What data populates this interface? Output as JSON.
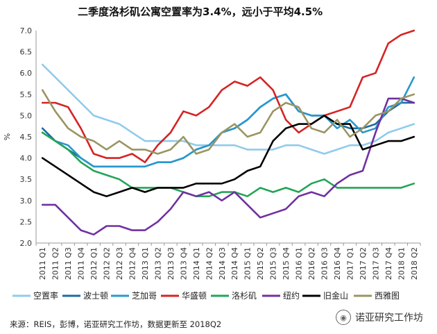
{
  "title": "二季度洛杉矶公寓空置率为3.4%，远小于平均4.5%",
  "source": "来源：REIS，彭博，诺亚研究工作坊，数据更新至 2018Q2",
  "watermark": "诺亚研究工作坊",
  "chart_data": {
    "type": "line",
    "ylabel": "%",
    "ylim": [
      2.0,
      7.0
    ],
    "yticks": [
      2.0,
      2.5,
      3.0,
      3.5,
      4.0,
      4.5,
      5.0,
      5.5,
      6.0,
      6.5,
      7.0
    ],
    "grid": false,
    "legend": "bottom",
    "categories": [
      "2011 Q1",
      "2011 Q2",
      "2011 Q3",
      "2011 Q4",
      "2012 Q1",
      "2012 Q2",
      "2012 Q3",
      "2012 Q4",
      "2013 Q1",
      "2013 Q2",
      "2013 Q3",
      "2013 Q4",
      "2014 Q1",
      "2014 Q2",
      "2014 Q3",
      "2014 Q4",
      "2015 Q1",
      "2015 Q2",
      "2015 Q3",
      "2015 Q4",
      "2016 Q1",
      "2016 Q2",
      "2016 Q3",
      "2016 Q4",
      "2017 Q1",
      "2017 Q2",
      "2017 Q3",
      "2017 Q4",
      "2018 Q1",
      "2018 Q2"
    ],
    "series": [
      {
        "name": "空置率",
        "color": "#8fcbec",
        "values": [
          6.2,
          5.9,
          5.6,
          5.3,
          5.0,
          4.9,
          4.8,
          4.6,
          4.4,
          4.4,
          4.4,
          4.4,
          4.3,
          4.3,
          4.3,
          4.3,
          4.2,
          4.2,
          4.2,
          4.3,
          4.3,
          4.2,
          4.1,
          4.2,
          4.3,
          4.3,
          4.4,
          4.6,
          4.7,
          4.8
        ]
      },
      {
        "name": "波士顿",
        "color": "#1c6ba0",
        "values": [
          4.7,
          4.4,
          4.2,
          4.0,
          3.8,
          3.8,
          3.8,
          3.8,
          3.8,
          3.9,
          3.9,
          4.0,
          4.2,
          4.3,
          4.6,
          4.7,
          4.9,
          5.2,
          5.4,
          5.5,
          5.1,
          5.0,
          5.0,
          4.8,
          4.7,
          4.7,
          4.8,
          5.1,
          5.3,
          5.3
        ]
      },
      {
        "name": "芝加哥",
        "color": "#2898cc",
        "values": [
          4.6,
          4.4,
          4.3,
          4.0,
          3.8,
          3.8,
          3.8,
          3.8,
          3.8,
          3.9,
          3.9,
          4.0,
          4.2,
          4.3,
          4.6,
          4.7,
          4.9,
          5.2,
          5.4,
          5.5,
          5.1,
          5.0,
          5.0,
          4.7,
          4.9,
          4.6,
          4.7,
          5.2,
          5.3,
          5.9
        ]
      },
      {
        "name": "华盛顿",
        "color": "#d42423",
        "values": [
          5.3,
          5.3,
          5.2,
          4.7,
          4.1,
          4.0,
          4.0,
          4.1,
          3.9,
          4.3,
          4.6,
          5.1,
          5.0,
          5.2,
          5.6,
          5.8,
          5.7,
          5.9,
          5.6,
          4.9,
          4.6,
          4.8,
          5.0,
          5.1,
          5.2,
          5.9,
          6.0,
          6.7,
          6.9,
          7.0
        ]
      },
      {
        "name": "洛杉矶",
        "color": "#22a556",
        "values": [
          4.6,
          4.4,
          4.2,
          3.9,
          3.7,
          3.6,
          3.5,
          3.3,
          3.3,
          3.3,
          3.3,
          3.2,
          3.1,
          3.1,
          3.2,
          3.2,
          3.1,
          3.3,
          3.2,
          3.3,
          3.2,
          3.4,
          3.5,
          3.3,
          3.3,
          3.3,
          3.3,
          3.3,
          3.3,
          3.4
        ]
      },
      {
        "name": "纽约",
        "color": "#7030a0",
        "values": [
          2.9,
          2.9,
          2.6,
          2.3,
          2.2,
          2.4,
          2.4,
          2.3,
          2.3,
          2.5,
          2.8,
          3.2,
          3.1,
          3.2,
          3.0,
          3.2,
          2.9,
          2.6,
          2.7,
          2.8,
          3.1,
          3.2,
          3.1,
          3.4,
          3.6,
          3.7,
          4.6,
          5.4,
          5.4,
          5.3
        ]
      },
      {
        "name": "旧金山",
        "color": "#000000",
        "values": [
          4.0,
          3.8,
          3.6,
          3.4,
          3.2,
          3.1,
          3.2,
          3.3,
          3.2,
          3.3,
          3.3,
          3.3,
          3.4,
          3.4,
          3.4,
          3.5,
          3.7,
          3.8,
          4.4,
          4.7,
          4.8,
          4.8,
          5.0,
          4.8,
          4.8,
          4.2,
          4.3,
          4.4,
          4.4,
          4.5
        ]
      },
      {
        "name": "西雅图",
        "color": "#9a9462",
        "values": [
          5.6,
          5.1,
          4.7,
          4.5,
          4.4,
          4.2,
          4.4,
          4.2,
          4.2,
          4.1,
          4.2,
          4.5,
          4.1,
          4.2,
          4.6,
          4.8,
          4.5,
          4.6,
          5.1,
          5.3,
          5.2,
          4.7,
          4.6,
          4.9,
          4.5,
          4.7,
          5.0,
          5.1,
          5.4,
          5.5
        ]
      }
    ]
  }
}
